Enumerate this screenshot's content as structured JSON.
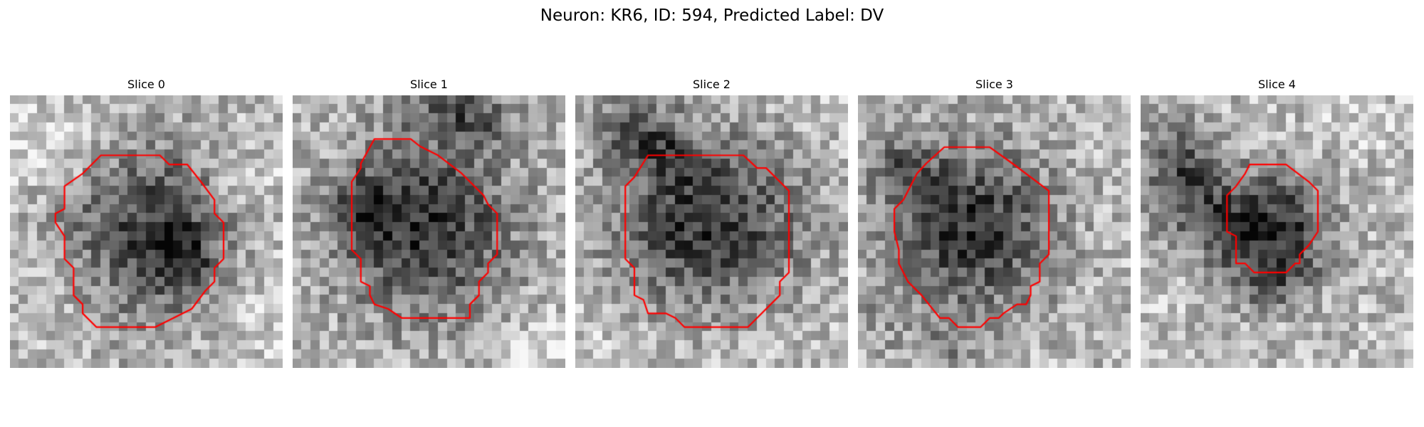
{
  "figure": {
    "title": "Neuron: KR6, ID: 594, Predicted Label: DV"
  },
  "style": {
    "contour_color": "#ff0000",
    "colormap": "gray"
  },
  "panels": [
    {
      "title": "Slice 0",
      "contour": [
        [
          10,
          6.6
        ],
        [
          16.5,
          6.6
        ],
        [
          17.5,
          7.6
        ],
        [
          19.5,
          7.6
        ],
        [
          21,
          9.5
        ],
        [
          22.5,
          11.5
        ],
        [
          22.5,
          13
        ],
        [
          23.5,
          14
        ],
        [
          23.5,
          18
        ],
        [
          22.5,
          19
        ],
        [
          22.5,
          20.5
        ],
        [
          21.5,
          21.5
        ],
        [
          20,
          23.5
        ],
        [
          18,
          24.5
        ],
        [
          16,
          25.5
        ],
        [
          9.5,
          25.5
        ],
        [
          8,
          24
        ],
        [
          8,
          23
        ],
        [
          7,
          22
        ],
        [
          7,
          19
        ],
        [
          6,
          18
        ],
        [
          6,
          15.5
        ],
        [
          5,
          14
        ],
        [
          5,
          13
        ],
        [
          6,
          12.5
        ],
        [
          6,
          10
        ],
        [
          8,
          8.6
        ]
      ],
      "blobs": [
        [
          16,
          15,
          6,
          7,
          0.5
        ],
        [
          19,
          18,
          2.5,
          2.5,
          0.3
        ],
        [
          6,
          14,
          2,
          2,
          0.15
        ],
        [
          3,
          5,
          5,
          3,
          -0.15
        ],
        [
          26,
          10,
          3,
          3,
          -0.12
        ],
        [
          26,
          24,
          4,
          4,
          -0.1
        ]
      ],
      "seed": 11
    },
    {
      "title": "Slice 1",
      "contour": [
        [
          9,
          4.8
        ],
        [
          13,
          4.8
        ],
        [
          14,
          5.6
        ],
        [
          16,
          6.6
        ],
        [
          18.5,
          8.5
        ],
        [
          21,
          11
        ],
        [
          21.5,
          12
        ],
        [
          22.5,
          13
        ],
        [
          22.5,
          17.5
        ],
        [
          21.5,
          18.5
        ],
        [
          21.5,
          19.5
        ],
        [
          20.5,
          20.5
        ],
        [
          20.5,
          22
        ],
        [
          19.5,
          23
        ],
        [
          19.5,
          24.5
        ],
        [
          12,
          24.5
        ],
        [
          10.5,
          23.5
        ],
        [
          9,
          23
        ],
        [
          8.5,
          22
        ],
        [
          8.5,
          21
        ],
        [
          7.5,
          20.5
        ],
        [
          7.5,
          18
        ],
        [
          6.5,
          17
        ],
        [
          6.5,
          9.5
        ],
        [
          7.5,
          8
        ],
        [
          7.5,
          7.5
        ],
        [
          8,
          6.6
        ]
      ],
      "blobs": [
        [
          14.5,
          14.5,
          7,
          7,
          0.55
        ],
        [
          8,
          12,
          2.5,
          2.5,
          0.25
        ],
        [
          20,
          3,
          4,
          2,
          0.25
        ],
        [
          17,
          1,
          4,
          2,
          0.2
        ],
        [
          28,
          28,
          3,
          3,
          -0.12
        ]
      ],
      "seed": 23
    },
    {
      "title": "Slice 2",
      "contour": [
        [
          8,
          6.6
        ],
        [
          18.5,
          6.6
        ],
        [
          20,
          8
        ],
        [
          21,
          8
        ],
        [
          22.5,
          9.5
        ],
        [
          23.5,
          10.5
        ],
        [
          23.5,
          19.5
        ],
        [
          22.5,
          20.5
        ],
        [
          22.5,
          22
        ],
        [
          20,
          24.5
        ],
        [
          19,
          25.5
        ],
        [
          12,
          25.5
        ],
        [
          11,
          24.5
        ],
        [
          10,
          24
        ],
        [
          8,
          24
        ],
        [
          7.5,
          22.5
        ],
        [
          6.5,
          22
        ],
        [
          6.5,
          19
        ],
        [
          5.5,
          18
        ],
        [
          5.5,
          10
        ],
        [
          6.5,
          9
        ]
      ],
      "blobs": [
        [
          14.5,
          14,
          7.5,
          6.5,
          0.55
        ],
        [
          7,
          4,
          3,
          3,
          0.35
        ],
        [
          11,
          7,
          2,
          2,
          0.2
        ],
        [
          3,
          28,
          4,
          3,
          -0.08
        ]
      ],
      "seed": 37
    },
    {
      "title": "Slice 3",
      "contour": [
        [
          9.5,
          5.7
        ],
        [
          14.5,
          5.7
        ],
        [
          17,
          7.5
        ],
        [
          21,
          10.5
        ],
        [
          21,
          17.5
        ],
        [
          20,
          18.5
        ],
        [
          20,
          20.5
        ],
        [
          19,
          21
        ],
        [
          19,
          22
        ],
        [
          18.5,
          23
        ],
        [
          17.5,
          23
        ],
        [
          16,
          24
        ],
        [
          15.5,
          24.5
        ],
        [
          14.5,
          24.5
        ],
        [
          13.5,
          25.5
        ],
        [
          12.5,
          25.5
        ],
        [
          11,
          25.5
        ],
        [
          10,
          24.5
        ],
        [
          9,
          24.5
        ],
        [
          7,
          22
        ],
        [
          5.5,
          20.5
        ],
        [
          4.5,
          18.5
        ],
        [
          4.5,
          17
        ],
        [
          4,
          15
        ],
        [
          4,
          12.5
        ],
        [
          5,
          11.5
        ],
        [
          6.5,
          8.6
        ],
        [
          7.5,
          7.5
        ],
        [
          8.5,
          6.6
        ]
      ],
      "blobs": [
        [
          12.5,
          14.5,
          6.5,
          6.5,
          0.55
        ],
        [
          5,
          8,
          2.5,
          2.5,
          0.25
        ],
        [
          10,
          28,
          3,
          3,
          0.15
        ],
        [
          3,
          24,
          2,
          3,
          0.1
        ]
      ],
      "seed": 53
    },
    {
      "title": "Slice 4",
      "contour": [
        [
          12,
          7.6
        ],
        [
          16,
          7.6
        ],
        [
          18.5,
          9.5
        ],
        [
          19.5,
          10.5
        ],
        [
          19.5,
          15
        ],
        [
          18.5,
          16.5
        ],
        [
          17.5,
          17.5
        ],
        [
          17.5,
          18.5
        ],
        [
          17,
          18.5
        ],
        [
          16,
          19.5
        ],
        [
          15,
          19.5
        ],
        [
          12.5,
          19.5
        ],
        [
          11.5,
          18.5
        ],
        [
          10.5,
          18.5
        ],
        [
          10.5,
          15.5
        ],
        [
          9.5,
          15
        ],
        [
          9.5,
          11
        ],
        [
          10.5,
          10
        ],
        [
          11.5,
          8.6
        ]
      ],
      "blobs": [
        [
          14.5,
          15,
          4.5,
          4.5,
          0.6
        ],
        [
          4.5,
          9,
          3,
          4,
          0.45
        ],
        [
          8,
          14,
          2.5,
          2.5,
          0.2
        ],
        [
          14,
          21,
          3,
          2,
          0.18
        ],
        [
          24,
          4,
          3,
          2,
          -0.08
        ]
      ],
      "seed": 71
    }
  ]
}
